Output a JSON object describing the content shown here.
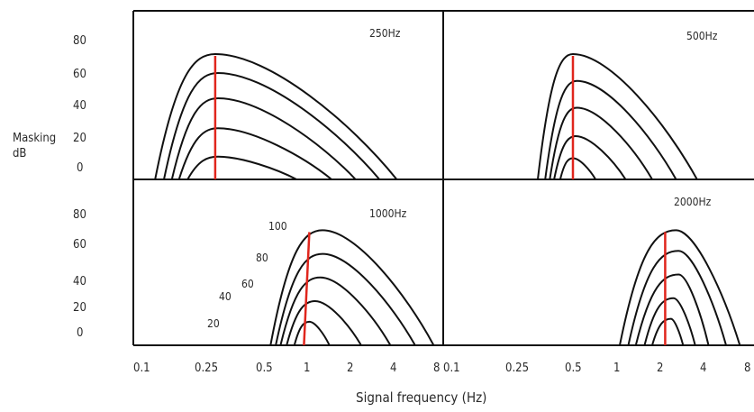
{
  "ylabel_line1": "Masking",
  "ylabel_line2": "dB",
  "xlabel": "Signal frequency (Hz)",
  "colors": {
    "axis": "#111111",
    "curve": "#111111",
    "marker": "#e0261d"
  },
  "chart_data": [
    {
      "type": "line",
      "title": "250Hz",
      "x_scale": "log",
      "xlim": [
        0.1,
        8
      ],
      "ylim": [
        -5,
        90
      ],
      "y_ticks": [
        "80",
        "60",
        "40",
        "20",
        "0"
      ],
      "x_ticks": [],
      "masker_frequency": 0.27,
      "series": [
        {
          "peak_x": 0.27,
          "peak_y": 72,
          "x_start": 0.125,
          "x_end": 4.2
        },
        {
          "peak_x": 0.28,
          "peak_y": 60,
          "x_start": 0.14,
          "x_end": 3.2
        },
        {
          "peak_x": 0.28,
          "peak_y": 44,
          "x_start": 0.155,
          "x_end": 2.2
        },
        {
          "peak_x": 0.28,
          "peak_y": 25,
          "x_start": 0.17,
          "x_end": 1.5
        },
        {
          "peak_x": 0.28,
          "peak_y": 7,
          "x_start": 0.19,
          "x_end": 0.85
        }
      ]
    },
    {
      "type": "line",
      "title": "500Hz",
      "x_scale": "log",
      "xlim": [
        0.1,
        8
      ],
      "ylim": [
        -5,
        90
      ],
      "y_ticks": [],
      "x_ticks": [],
      "masker_frequency": 0.5,
      "series": [
        {
          "peak_x": 0.5,
          "peak_y": 72,
          "x_start": 0.33,
          "x_end": 3.5
        },
        {
          "peak_x": 0.53,
          "peak_y": 55,
          "x_start": 0.36,
          "x_end": 2.5
        },
        {
          "peak_x": 0.53,
          "peak_y": 38,
          "x_start": 0.38,
          "x_end": 1.7
        },
        {
          "peak_x": 0.52,
          "peak_y": 20,
          "x_start": 0.4,
          "x_end": 1.1
        },
        {
          "peak_x": 0.5,
          "peak_y": 6,
          "x_start": 0.43,
          "x_end": 0.7
        }
      ]
    },
    {
      "type": "line",
      "title": "1000Hz",
      "x_scale": "log",
      "xlim": [
        0.1,
        8
      ],
      "ylim": [
        -5,
        90
      ],
      "y_ticks": [
        "80",
        "60",
        "40",
        "20",
        "0"
      ],
      "x_ticks": [
        "0.1",
        "0.25",
        "0.5",
        "1",
        "2",
        "4",
        "8"
      ],
      "masker_frequency": 1.05,
      "series": [
        {
          "name": "100",
          "peak_x": 1.3,
          "peak_y": 70,
          "x_start": 0.55,
          "x_end": 7.5
        },
        {
          "name": "80",
          "peak_x": 1.3,
          "peak_y": 54,
          "x_start": 0.6,
          "x_end": 5.6
        },
        {
          "name": "60",
          "peak_x": 1.25,
          "peak_y": 38,
          "x_start": 0.65,
          "x_end": 3.8
        },
        {
          "name": "40",
          "peak_x": 1.15,
          "peak_y": 22,
          "x_start": 0.72,
          "x_end": 2.4
        },
        {
          "name": "20",
          "peak_x": 1.05,
          "peak_y": 8,
          "x_start": 0.82,
          "x_end": 1.45
        }
      ]
    },
    {
      "type": "line",
      "title": "2000Hz",
      "x_scale": "log",
      "xlim": [
        0.1,
        8
      ],
      "ylim": [
        -5,
        90
      ],
      "y_ticks": [],
      "x_ticks": [
        "0.1",
        "0.25",
        "0.5",
        "1",
        "2",
        "4",
        "8"
      ],
      "masker_frequency": 2.1,
      "series": [
        {
          "peak_x": 2.5,
          "peak_y": 70,
          "x_start": 1.0,
          "x_end": 6.8
        },
        {
          "peak_x": 2.6,
          "peak_y": 56,
          "x_start": 1.15,
          "x_end": 5.5
        },
        {
          "peak_x": 2.6,
          "peak_y": 40,
          "x_start": 1.3,
          "x_end": 4.2
        },
        {
          "peak_x": 2.4,
          "peak_y": 24,
          "x_start": 1.5,
          "x_end": 3.4
        },
        {
          "peak_x": 2.3,
          "peak_y": 10,
          "x_start": 1.7,
          "x_end": 2.8
        }
      ]
    }
  ]
}
